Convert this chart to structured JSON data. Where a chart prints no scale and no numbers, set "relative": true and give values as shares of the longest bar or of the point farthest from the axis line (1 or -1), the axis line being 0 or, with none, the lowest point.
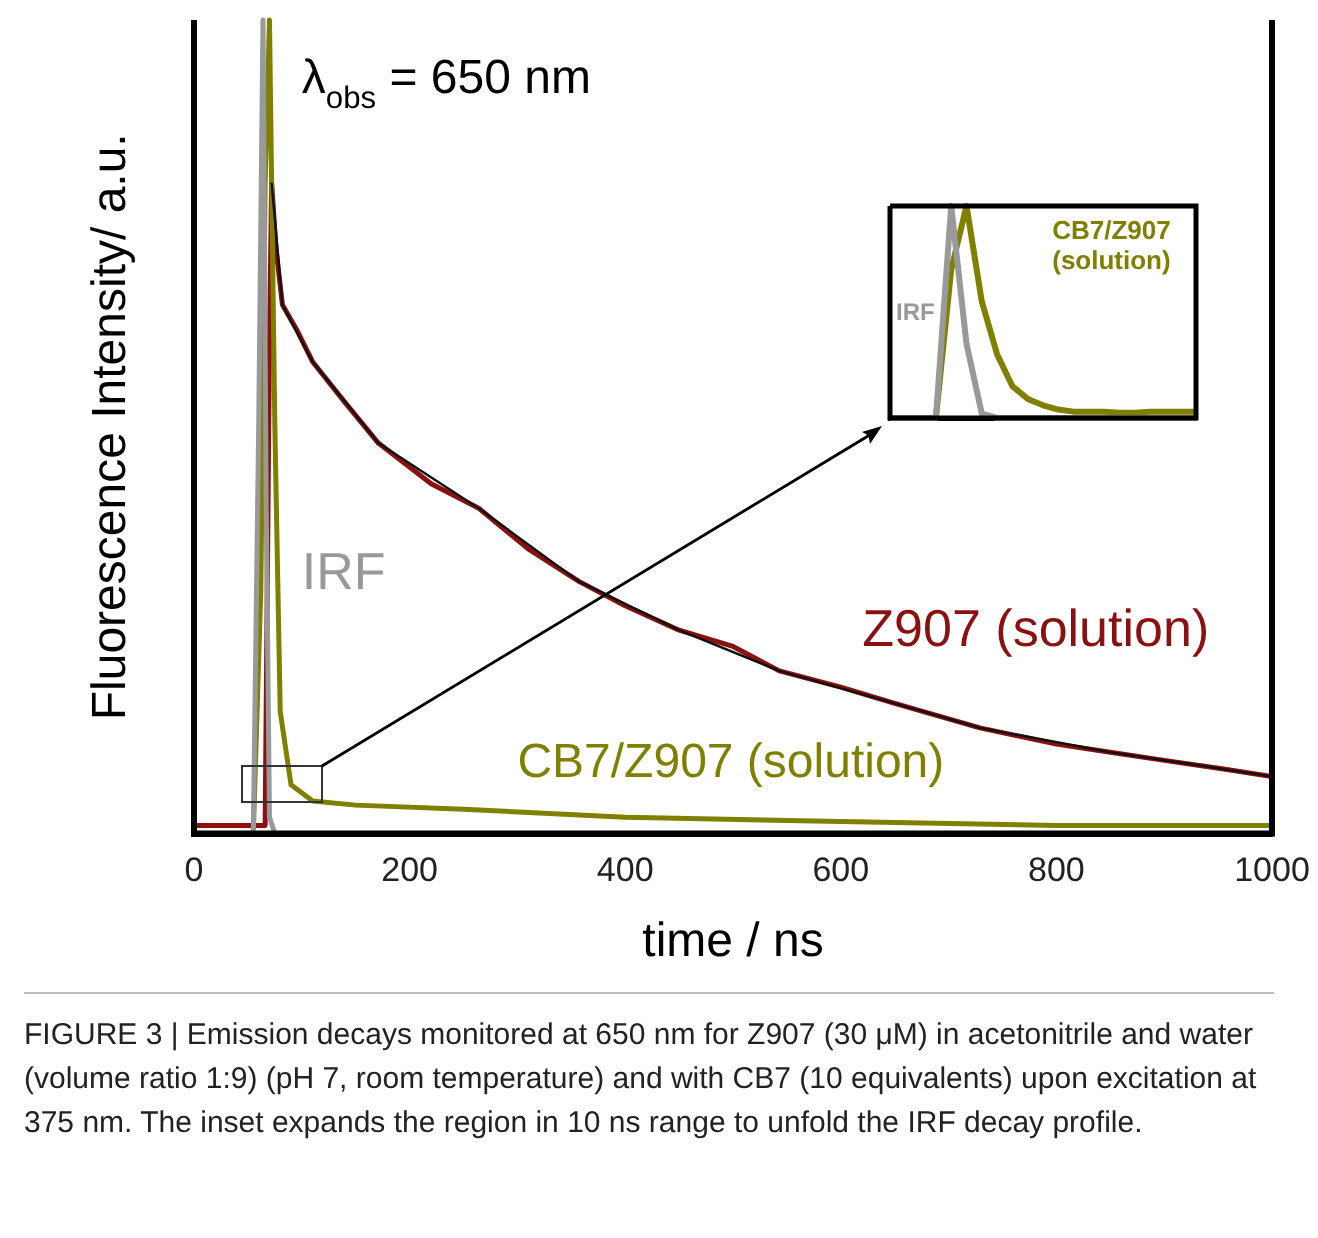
{
  "chart_data": [
    {
      "type": "line",
      "relative": true,
      "xlabel": "time / ns",
      "ylabel": "Fluorescence Intensity/ a.u.",
      "xlim": [
        0,
        1000
      ],
      "xticks": [
        0,
        200,
        400,
        600,
        800,
        1000
      ],
      "grid": false,
      "legend": false,
      "marker": "none",
      "line_style": "solid",
      "annotations": [
        "λ$_{obs}$ = 650 nm",
        "FIGURE 3 | Emission decays monitored at 650 nm for Z907 (30 μM) in acetonitrile and water (volume ratio 1:9) (pH 7, room temperature) and with CB7 (10 equivalents) upon excitation at 375 nm. The inset expands the region in 10 ns range to unfold the IRF decay profile."
      ],
      "series": [
        {
          "name": "Z907 (solution)",
          "color": "#8b1010",
          "x": [
            0,
            40,
            66,
            70,
            72,
            76,
            82,
            95,
            110,
            140,
            171,
            220,
            264,
            310,
            357,
            400,
            450,
            500,
            543,
            600,
            650,
            729,
            800,
            850,
            900,
            952,
            1000
          ],
          "values": [
            0.01,
            0.01,
            0.01,
            0.6,
            0.8,
            0.72,
            0.65,
            0.62,
            0.58,
            0.53,
            0.48,
            0.43,
            0.4,
            0.35,
            0.31,
            0.28,
            0.25,
            0.23,
            0.2,
            0.18,
            0.16,
            0.13,
            0.11,
            0.1,
            0.09,
            0.08,
            0.07
          ]
        },
        {
          "color": "#111111",
          "x": [
            72,
            82,
            110,
            171,
            264,
            357,
            450,
            543,
            650,
            729,
            850,
            952,
            1000
          ],
          "values": [
            0.8,
            0.65,
            0.58,
            0.48,
            0.4,
            0.31,
            0.25,
            0.2,
            0.16,
            0.13,
            0.1,
            0.08,
            0.07
          ]
        },
        {
          "name": "CB7/Z907 (solution)",
          "color": "#808000",
          "x": [
            0,
            55,
            62,
            66,
            70,
            75,
            80,
            90,
            110,
            150,
            250,
            400,
            600,
            800,
            1000
          ],
          "values": [
            0,
            0,
            0.3,
            0.8,
            1,
            0.5,
            0.15,
            0.06,
            0.04,
            0.035,
            0.03,
            0.02,
            0.015,
            0.01,
            0.01
          ]
        },
        {
          "name": "IRF",
          "color": "#999999",
          "x": [
            0,
            55,
            60,
            64,
            67,
            70,
            75,
            1000
          ],
          "values": [
            0,
            0,
            0.5,
            1,
            0.4,
            0.02,
            0,
            0
          ]
        }
      ]
    },
    {
      "type": "line",
      "relative": true,
      "grid": false,
      "legend": false,
      "marker": "none",
      "tick_labels": false,
      "categories": [
        null,
        null,
        null,
        null,
        null,
        null,
        null,
        null,
        null,
        null,
        null,
        null,
        null,
        null,
        null,
        null,
        null,
        null,
        null,
        null,
        null
      ],
      "series": [
        {
          "name": "IRF",
          "color": "#999999",
          "values": [
            0,
            0,
            0,
            0,
            1,
            0.35,
            0.02,
            0,
            0,
            0,
            0,
            0,
            0,
            0,
            0,
            0,
            0,
            0,
            0,
            0,
            0
          ]
        },
        {
          "name": "CB7/Z907 (solution)",
          "color": "#808000",
          "values": [
            0,
            0,
            0,
            0,
            0.7,
            1,
            0.55,
            0.3,
            0.15,
            0.09,
            0.06,
            0.04,
            0.03,
            0.03,
            0.03,
            0.025,
            0.025,
            0.03,
            0.03,
            0.03,
            0.03
          ]
        }
      ]
    }
  ]
}
